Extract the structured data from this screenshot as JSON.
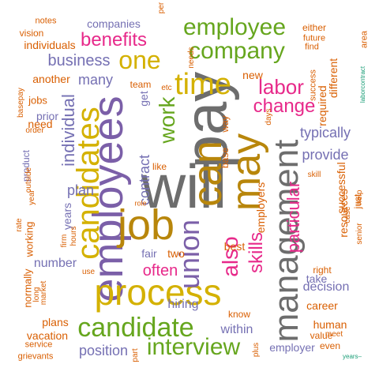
{
  "words": [
    {
      "text": "will",
      "size": 78,
      "color": "#6d6d6d"
    },
    {
      "text": "pay",
      "size": 76,
      "color": "#6d6d6d",
      "rot": -90
    },
    {
      "text": "employees",
      "size": 54,
      "color": "#7b5fa8",
      "rot": -90
    },
    {
      "text": "job",
      "size": 54,
      "color": "#b8860b"
    },
    {
      "text": "can",
      "size": 52,
      "color": "#b8860b",
      "rot": -90
    },
    {
      "text": "may",
      "size": 52,
      "color": "#b8860b",
      "rot": -90
    },
    {
      "text": "process",
      "size": 46,
      "color": "#d4b100"
    },
    {
      "text": "management",
      "size": 44,
      "color": "#6d6d6d",
      "rot": -90
    },
    {
      "text": "candidates",
      "size": 40,
      "color": "#d4b100",
      "rot": -90
    },
    {
      "text": "time",
      "size": 38,
      "color": "#d4b100"
    },
    {
      "text": "union",
      "size": 36,
      "color": "#7b5fa8",
      "rot": -90
    },
    {
      "text": "candidate",
      "size": 34,
      "color": "#66a61e"
    },
    {
      "text": "one",
      "size": 32,
      "color": "#d4b100"
    },
    {
      "text": "company",
      "size": 30,
      "color": "#66a61e"
    },
    {
      "text": "employee",
      "size": 30,
      "color": "#66a61e"
    },
    {
      "text": "interview",
      "size": 30,
      "color": "#66a61e"
    },
    {
      "text": "work",
      "size": 28,
      "color": "#66a61e",
      "rot": -90
    },
    {
      "text": "also",
      "size": 28,
      "color": "#e7298a",
      "rot": -90
    },
    {
      "text": "labor",
      "size": 26,
      "color": "#e7298a"
    },
    {
      "text": "change",
      "size": 24,
      "color": "#e7298a"
    },
    {
      "text": "benefits",
      "size": 24,
      "color": "#e7298a"
    },
    {
      "text": "skills",
      "size": 24,
      "color": "#e7298a",
      "rot": -90
    },
    {
      "text": "particular",
      "size": 22,
      "color": "#e7298a",
      "rot": -90
    },
    {
      "text": "individual",
      "size": 22,
      "color": "#7570b3",
      "rot": -90
    },
    {
      "text": "often",
      "size": 20,
      "color": "#e7298a"
    },
    {
      "text": "business",
      "size": 20,
      "color": "#7570b3"
    },
    {
      "text": "provide",
      "size": 18,
      "color": "#7570b3"
    },
    {
      "text": "typically",
      "size": 18,
      "color": "#7570b3"
    },
    {
      "text": "contract",
      "size": 18,
      "color": "#7570b3",
      "rot": -90
    },
    {
      "text": "position",
      "size": 18,
      "color": "#7570b3"
    },
    {
      "text": "many",
      "size": 18,
      "color": "#7570b3"
    },
    {
      "text": "plan",
      "size": 18,
      "color": "#7570b3"
    },
    {
      "text": "within",
      "size": 16,
      "color": "#7570b3"
    },
    {
      "text": "hiring",
      "size": 16,
      "color": "#7570b3"
    },
    {
      "text": "decision",
      "size": 16,
      "color": "#7570b3"
    },
    {
      "text": "number",
      "size": 16,
      "color": "#7570b3"
    },
    {
      "text": "employer",
      "size": 14,
      "color": "#7570b3"
    },
    {
      "text": "companies",
      "size": 14,
      "color": "#7570b3"
    },
    {
      "text": "take",
      "size": 14,
      "color": "#7570b3"
    },
    {
      "text": "years",
      "size": 14,
      "color": "#7570b3",
      "rot": -90
    },
    {
      "text": "employers",
      "size": 14,
      "color": "#d95f02",
      "rot": -90
    },
    {
      "text": "resources",
      "size": 14,
      "color": "#d95f02",
      "rot": -90
    },
    {
      "text": "successful",
      "size": 14,
      "color": "#d95f02",
      "rot": -90
    },
    {
      "text": "required",
      "size": 14,
      "color": "#d95f02",
      "rot": -90
    },
    {
      "text": "different",
      "size": 14,
      "color": "#d95f02",
      "rot": -90
    },
    {
      "text": "human",
      "size": 14,
      "color": "#d95f02"
    },
    {
      "text": "plans",
      "size": 14,
      "color": "#d95f02"
    },
    {
      "text": "vacation",
      "size": 14,
      "color": "#d95f02"
    },
    {
      "text": "new",
      "size": 14,
      "color": "#d95f02"
    },
    {
      "text": "best",
      "size": 14,
      "color": "#d95f02"
    },
    {
      "text": "career",
      "size": 14,
      "color": "#d95f02"
    },
    {
      "text": "individuals",
      "size": 14,
      "color": "#d95f02"
    },
    {
      "text": "another",
      "size": 14,
      "color": "#d95f02"
    },
    {
      "text": "product",
      "size": 12,
      "color": "#7570b3",
      "rot": -90
    },
    {
      "text": "get",
      "size": 14,
      "color": "#7570b3",
      "rot": -90
    },
    {
      "text": "fair",
      "size": 14,
      "color": "#7570b3"
    },
    {
      "text": "two",
      "size": 14,
      "color": "#d95f02"
    },
    {
      "text": "prior",
      "size": 14,
      "color": "#7570b3"
    },
    {
      "text": "need",
      "size": 14,
      "color": "#d95f02"
    },
    {
      "text": "jobs",
      "size": 13,
      "color": "#d95f02"
    },
    {
      "text": "working",
      "size": 13,
      "color": "#d95f02",
      "rot": -90
    },
    {
      "text": "normally",
      "size": 13,
      "color": "#d95f02",
      "rot": -90
    },
    {
      "text": "vision",
      "size": 12,
      "color": "#d95f02"
    },
    {
      "text": "team",
      "size": 12,
      "color": "#d95f02"
    },
    {
      "text": "right",
      "size": 12,
      "color": "#d95f02"
    },
    {
      "text": "value",
      "size": 12,
      "color": "#d95f02"
    },
    {
      "text": "even",
      "size": 12,
      "color": "#d95f02"
    },
    {
      "text": "know",
      "size": 12,
      "color": "#d95f02"
    },
    {
      "text": "like",
      "size": 12,
      "color": "#d95f02"
    },
    {
      "text": "base",
      "size": 12,
      "color": "#d95f02",
      "rot": -90
    },
    {
      "text": "way",
      "size": 12,
      "color": "#d95f02",
      "rot": -90
    },
    {
      "text": "either",
      "size": 12,
      "color": "#d95f02"
    },
    {
      "text": "just",
      "size": 12,
      "color": "#d95f02",
      "rot": -90
    },
    {
      "text": "service",
      "size": 11,
      "color": "#d95f02"
    },
    {
      "text": "grievants",
      "size": 11,
      "color": "#d95f02"
    },
    {
      "text": "notes",
      "size": 11,
      "color": "#d95f02"
    },
    {
      "text": "future",
      "size": 11,
      "color": "#d95f02"
    },
    {
      "text": "find",
      "size": 11,
      "color": "#d95f02"
    },
    {
      "text": "success",
      "size": 11,
      "color": "#d95f02",
      "rot": -90
    },
    {
      "text": "area",
      "size": 11,
      "color": "#d95f02",
      "rot": -90
    },
    {
      "text": "needs",
      "size": 10,
      "color": "#d95f02",
      "rot": -90
    },
    {
      "text": "days",
      "size": 10,
      "color": "#d95f02",
      "rot": -90
    },
    {
      "text": "rate",
      "size": 10,
      "color": "#d95f02",
      "rot": -90
    },
    {
      "text": "long",
      "size": 10,
      "color": "#d95f02",
      "rot": -90
    },
    {
      "text": "market",
      "size": 10,
      "color": "#d95f02",
      "rot": -90
    },
    {
      "text": "use",
      "size": 10,
      "color": "#d95f02"
    },
    {
      "text": "order",
      "size": 10,
      "color": "#d95f02"
    },
    {
      "text": "outside",
      "size": 10,
      "color": "#d95f02",
      "rot": -90
    },
    {
      "text": "basepay",
      "size": 10,
      "color": "#d95f02",
      "rot": -90
    },
    {
      "text": "year",
      "size": 10,
      "color": "#d95f02",
      "rot": -90
    },
    {
      "text": "firm",
      "size": 10,
      "color": "#d95f02",
      "rot": -90
    },
    {
      "text": "hours",
      "size": 10,
      "color": "#d95f02",
      "rot": -90
    },
    {
      "text": "skill",
      "size": 10,
      "color": "#d95f02"
    },
    {
      "text": "case",
      "size": 10,
      "color": "#d95f02",
      "rot": -90
    },
    {
      "text": "help",
      "size": 10,
      "color": "#d95f02",
      "rot": -90
    },
    {
      "text": "senior",
      "size": 10,
      "color": "#d95f02",
      "rot": -90
    },
    {
      "text": "meet",
      "size": 10,
      "color": "#d95f02"
    },
    {
      "text": "plus",
      "size": 10,
      "color": "#d95f02",
      "rot": -90
    },
    {
      "text": "part",
      "size": 10,
      "color": "#d95f02",
      "rot": -90
    },
    {
      "text": "per",
      "size": 10,
      "color": "#d95f02",
      "rot": -90
    },
    {
      "text": "etc",
      "size": 10,
      "color": "#d95f02"
    },
    {
      "text": "role",
      "size": 9,
      "color": "#d95f02"
    },
    {
      "text": "laborcontract",
      "size": 8,
      "color": "#1b9e77",
      "rot": -90
    },
    {
      "text": "years–",
      "size": 8,
      "color": "#1b9e77"
    }
  ]
}
